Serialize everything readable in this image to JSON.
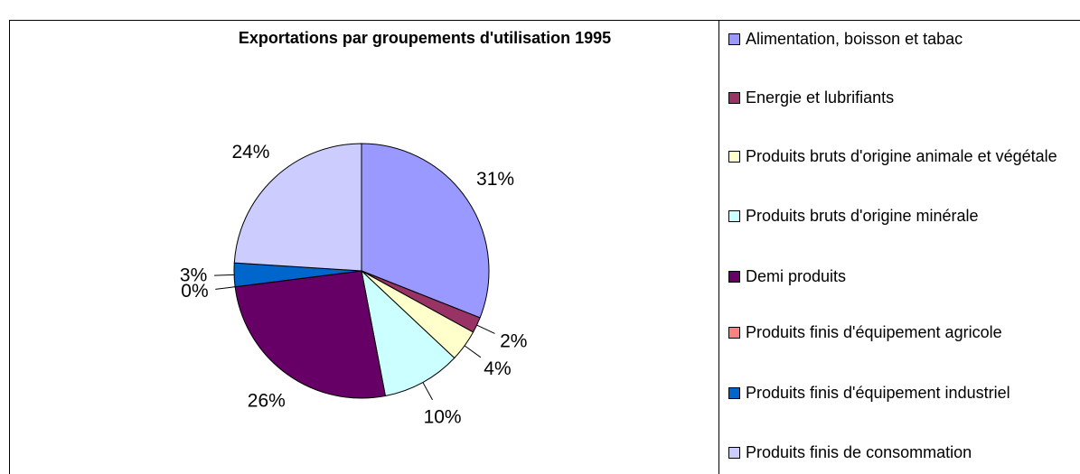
{
  "chart_data": {
    "type": "pie",
    "title": "Exportations par groupements d'utilisation 1995",
    "categories": [
      "Alimentation, boisson et tabac",
      "Energie et lubrifiants",
      "Produits bruts d'origine animale et végétale",
      "Produits bruts d'origine minérale",
      "Demi produits",
      "Produits finis d'équipement agricole",
      "Produits finis d'équipement industriel",
      "Produits finis de consommation"
    ],
    "values": [
      31,
      2,
      4,
      10,
      26,
      0,
      3,
      24
    ],
    "value_labels": [
      "31%",
      "2%",
      "4%",
      "10%",
      "26%",
      "0%",
      "3%",
      "24%"
    ],
    "colors": [
      "#9999ff",
      "#993366",
      "#ffffcc",
      "#ccffff",
      "#660066",
      "#ff8080",
      "#0066cc",
      "#ccccff"
    ]
  }
}
